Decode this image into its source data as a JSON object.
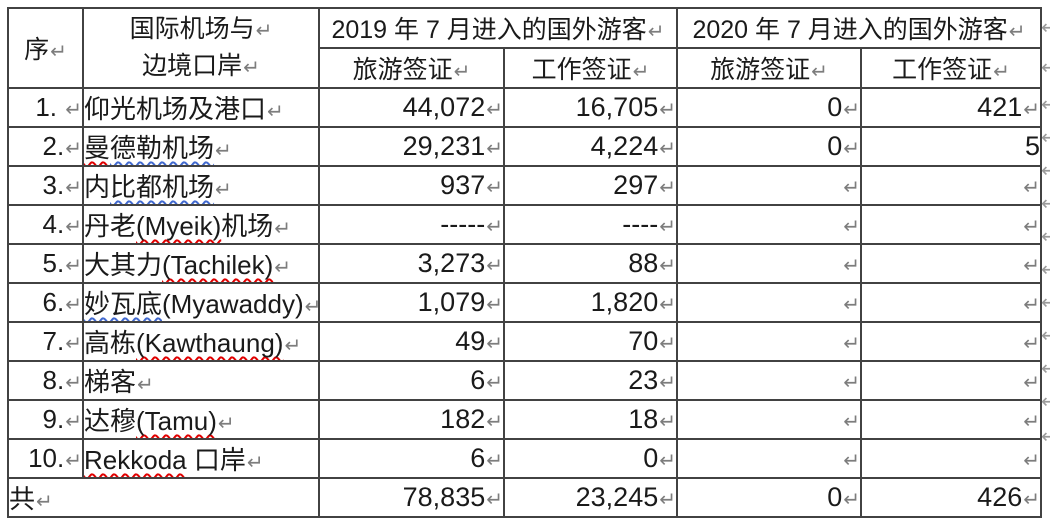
{
  "glyph": {
    "mark": "↵"
  },
  "header": {
    "seq": "序",
    "port_line1": "国际机场与",
    "port_line2": "边境口岸",
    "group_2019": "2019 年 7 月进入的国外游客",
    "group_2020": "2020 年 7 月进入的国外游客",
    "tourist_visa": "旅游签证",
    "work_visa": "工作签证"
  },
  "rows": [
    {
      "seq": "1. ",
      "name": [
        {
          "t": "仰光机场及港口"
        }
      ],
      "t19": "44,072",
      "w19": "16,705",
      "t20": "0",
      "w20": "421"
    },
    {
      "seq": "2.",
      "name": [
        {
          "t": "曼",
          "u": "wavy-red"
        },
        {
          "t": "德勒机场",
          "u": "wavy-blue"
        }
      ],
      "t19": "29,231",
      "w19": "4,224",
      "t20": "0",
      "w20": "5"
    },
    {
      "seq": "3.",
      "name": [
        {
          "t": "内"
        },
        {
          "t": "比都机场",
          "u": "wavy-blue"
        }
      ],
      "t19": "937",
      "w19": "297",
      "t20": "",
      "w20": ""
    },
    {
      "seq": "4.",
      "name": [
        {
          "t": "丹老"
        },
        {
          "t": "(Myeik)",
          "u": "wavy-red"
        },
        {
          "t": "机场"
        }
      ],
      "t19": "-----",
      "w19": "----",
      "t20": "",
      "w20": ""
    },
    {
      "seq": "5.",
      "name": [
        {
          "t": "大其力"
        },
        {
          "t": "(Tachilek)",
          "u": "wavy-red"
        }
      ],
      "t19": "3,273",
      "w19": "88",
      "t20": "",
      "w20": ""
    },
    {
      "seq": "6.",
      "name": [
        {
          "t": "妙瓦底",
          "u": "wavy-blue"
        },
        {
          "t": "(Myawaddy)"
        }
      ],
      "t19": "1,079",
      "w19": "1,820",
      "t20": "",
      "w20": ""
    },
    {
      "seq": "7.",
      "name": [
        {
          "t": "高栋"
        },
        {
          "t": "(Kawthaung)",
          "u": "wavy-red"
        }
      ],
      "t19": "49",
      "w19": "70",
      "t20": "",
      "w20": ""
    },
    {
      "seq": "8.",
      "name": [
        {
          "t": "梯客"
        }
      ],
      "t19": "6",
      "w19": "23",
      "t20": "",
      "w20": ""
    },
    {
      "seq": "9.",
      "name": [
        {
          "t": "达穆"
        },
        {
          "t": "(Tamu)",
          "u": "wavy-red"
        }
      ],
      "t19": "182",
      "w19": "18",
      "t20": "",
      "w20": ""
    },
    {
      "seq": "10.",
      "name": [
        {
          "t": "Rekkoda",
          "u": "wavy-red"
        },
        {
          "t": " 口岸"
        }
      ],
      "t19": "6",
      "w19": "0",
      "t20": "",
      "w20": ""
    }
  ],
  "total": {
    "label": "共",
    "t19": "78,835",
    "w19": "23,245",
    "t20": "0",
    "w20": "426"
  },
  "colors": {
    "border": "#424242",
    "mark": "#7d7d7d",
    "spell_error": "#e00000",
    "grammar_error": "#4169cf"
  }
}
